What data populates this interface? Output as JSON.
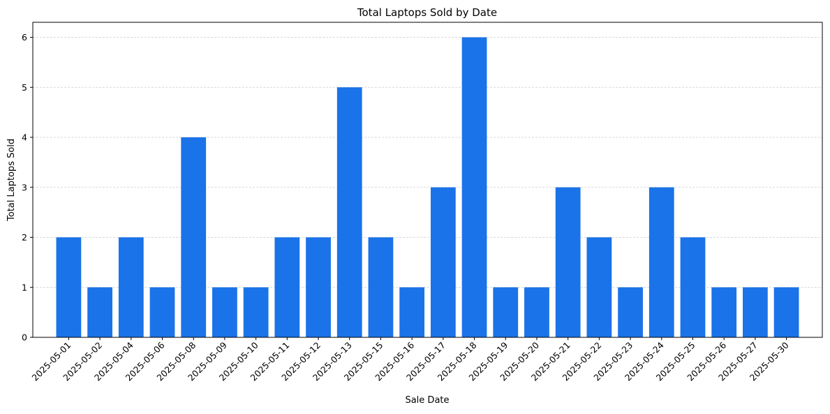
{
  "chart_data": {
    "type": "bar",
    "title": "Total Laptops Sold by Date",
    "xlabel": "Sale Date",
    "ylabel": "Total Laptops Sold",
    "categories": [
      "2025-05-01",
      "2025-05-02",
      "2025-05-04",
      "2025-05-06",
      "2025-05-08",
      "2025-05-09",
      "2025-05-10",
      "2025-05-11",
      "2025-05-12",
      "2025-05-13",
      "2025-05-15",
      "2025-05-16",
      "2025-05-17",
      "2025-05-18",
      "2025-05-19",
      "2025-05-20",
      "2025-05-21",
      "2025-05-22",
      "2025-05-23",
      "2025-05-24",
      "2025-05-25",
      "2025-05-26",
      "2025-05-27",
      "2025-05-30"
    ],
    "values": [
      2,
      1,
      2,
      1,
      4,
      1,
      1,
      2,
      2,
      5,
      2,
      1,
      3,
      6,
      1,
      1,
      3,
      2,
      1,
      3,
      2,
      1,
      1,
      1
    ],
    "ylim": [
      0,
      6.3
    ],
    "yticks": [
      0,
      1,
      2,
      3,
      4,
      5,
      6
    ],
    "grid": "y-dashed",
    "bar_color": "#1a73e8",
    "grid_color": "#cccccc"
  }
}
